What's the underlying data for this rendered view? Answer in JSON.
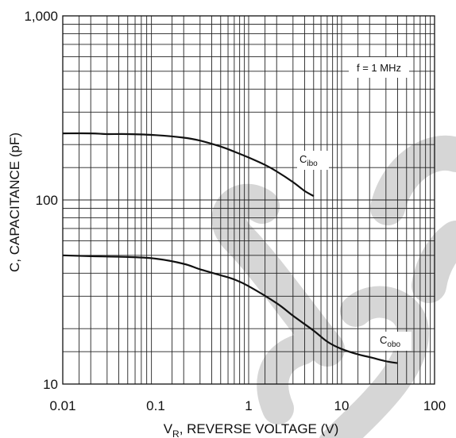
{
  "chart_data": {
    "type": "line",
    "title": "",
    "xlabel_main": "V",
    "xlabel_sub": "R",
    "xlabel_rest": ", REVERSE VOLTAGE (V)",
    "ylabel": "C, CAPACITANCE (pF)",
    "xscale": "log",
    "yscale": "log",
    "xlim": [
      0.01,
      100
    ],
    "ylim": [
      10,
      1000
    ],
    "grid": true,
    "x_ticks": [
      {
        "value": 0.01,
        "label": "0.01"
      },
      {
        "value": 0.1,
        "label": "0.1"
      },
      {
        "value": 1,
        "label": "1"
      },
      {
        "value": 10,
        "label": "10"
      },
      {
        "value": 100,
        "label": "100"
      }
    ],
    "y_ticks": [
      {
        "value": 10,
        "label": "10"
      },
      {
        "value": 100,
        "label": "100"
      },
      {
        "value": 1000,
        "label": "1,000"
      }
    ],
    "annotation": "f = 1 MHz",
    "series": [
      {
        "name_main": "C",
        "name_sub": "ibo",
        "color": "#111111",
        "x": [
          0.01,
          0.02,
          0.03,
          0.05,
          0.1,
          0.2,
          0.3,
          0.5,
          0.7,
          1,
          1.5,
          2,
          3,
          4,
          5
        ],
        "y": [
          230,
          230,
          228,
          228,
          225,
          218,
          210,
          195,
          183,
          170,
          155,
          143,
          125,
          112,
          105
        ]
      },
      {
        "name_main": "C",
        "name_sub": "obo",
        "color": "#111111",
        "x": [
          0.01,
          0.02,
          0.05,
          0.1,
          0.2,
          0.3,
          0.5,
          0.7,
          1,
          2,
          3,
          5,
          7,
          10,
          15,
          20,
          30,
          40
        ],
        "y": [
          50,
          49.5,
          49,
          48,
          45,
          42,
          39,
          37,
          34,
          27.5,
          23.5,
          19.5,
          17,
          15.5,
          14.5,
          14,
          13.3,
          13
        ]
      }
    ]
  },
  "watermark": {
    "color": "#d6d6d6",
    "name": "ce-letters-watermark"
  }
}
